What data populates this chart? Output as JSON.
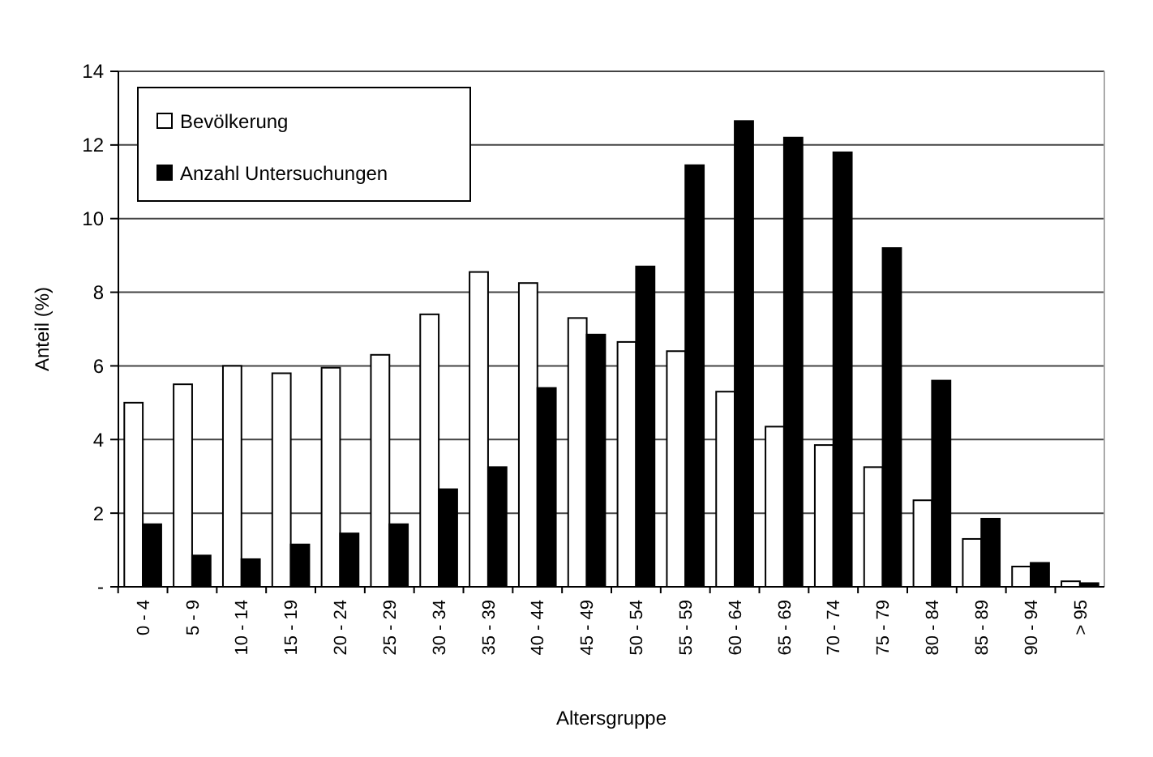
{
  "chart_data": {
    "type": "bar",
    "xlabel": "Altersgruppe",
    "ylabel": "Anteil (%)",
    "categories": [
      "0 - 4",
      "5 - 9",
      "10 - 14",
      "15 - 19",
      "20 - 24",
      "25 - 29",
      "30 - 34",
      "35 - 39",
      "40 - 44",
      "45 - 49",
      "50 - 54",
      "55 - 59",
      "60 - 64",
      "65 - 69",
      "70 - 74",
      "75 - 79",
      "80 - 84",
      "85 - 89",
      "90 - 94",
      "> 95"
    ],
    "series": [
      {
        "name": "Bevölkerung",
        "color": "#ffffff",
        "values": [
          5.0,
          5.5,
          6.0,
          5.8,
          5.95,
          6.3,
          7.4,
          8.55,
          8.25,
          7.3,
          6.65,
          6.4,
          5.3,
          4.35,
          3.85,
          3.25,
          2.35,
          1.3,
          0.55,
          0.15
        ]
      },
      {
        "name": "Anzahl Untersuchungen",
        "color": "#000000",
        "values": [
          1.7,
          0.85,
          0.75,
          1.15,
          1.45,
          1.7,
          2.65,
          3.25,
          5.4,
          6.85,
          8.7,
          11.45,
          12.65,
          12.2,
          11.8,
          9.2,
          5.6,
          1.85,
          0.65,
          0.1
        ]
      }
    ],
    "ylim": [
      0,
      14
    ],
    "yticks": [
      {
        "value": 0,
        "label": "-"
      },
      2,
      4,
      6,
      8,
      10,
      12,
      14
    ],
    "grid": "y",
    "legend": "top left"
  }
}
